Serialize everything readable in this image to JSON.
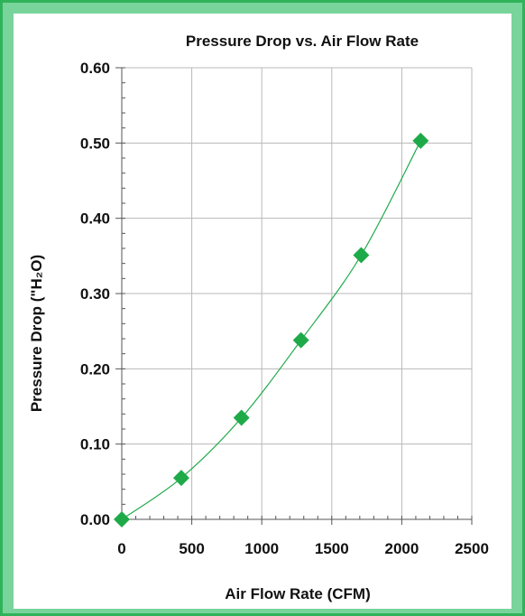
{
  "chart_data": {
    "type": "line",
    "title": "Pressure Drop vs. Air Flow Rate",
    "xlabel": "Air Flow Rate (CFM)",
    "ylabel": "Pressure Drop (\"H₂O)",
    "xlim": [
      0,
      2500
    ],
    "ylim": [
      0,
      0.6
    ],
    "x_ticks": [
      "0",
      "500",
      "1000",
      "1500",
      "2000",
      "2500"
    ],
    "y_ticks": [
      "0.00",
      "0.10",
      "0.20",
      "0.30",
      "0.40",
      "0.50",
      "0.60"
    ],
    "grid": true,
    "legend": "none",
    "marker": "diamond",
    "series": [
      {
        "x": [
          0,
          425,
          855,
          1280,
          1710,
          2135
        ],
        "y": [
          0.0,
          0.055,
          0.135,
          0.238,
          0.351,
          0.503
        ]
      }
    ],
    "colors": {
      "series": "#1faa4a",
      "frame": "#78d49a",
      "frame_border": "#2fb35a",
      "grid": "#b8b8b8",
      "axis": "#555555"
    }
  }
}
